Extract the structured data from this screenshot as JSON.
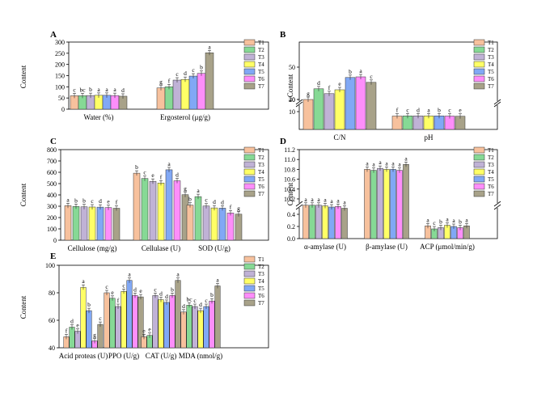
{
  "legend": [
    "T1",
    "T2",
    "T3",
    "T4",
    "T5",
    "T6",
    "T7"
  ],
  "colors": [
    "#f7c19d",
    "#86d995",
    "#c0b2d6",
    "#ffff66",
    "#81a8f5",
    "#fd8efa",
    "#a8a289"
  ],
  "chart_data": [
    {
      "panel": "A",
      "type": "bar",
      "ylabel": "Content",
      "categories": [
        "Water (%)",
        "Ergosterol (μg/g)"
      ],
      "ylim": [
        0,
        300
      ],
      "yticks": [
        "0",
        "50",
        "100",
        "150",
        "200",
        "250",
        "300"
      ],
      "series": [
        {
          "name": "T1",
          "values": [
            60,
            95
          ],
          "letters": [
            "c",
            "g"
          ]
        },
        {
          "name": "T2",
          "values": [
            60,
            100
          ],
          "letters": [
            "bc",
            "f"
          ]
        },
        {
          "name": "T3",
          "values": [
            61,
            130
          ],
          "letters": [
            "b",
            "c"
          ]
        },
        {
          "name": "T4",
          "values": [
            62,
            133
          ],
          "letters": [
            "a",
            "d"
          ]
        },
        {
          "name": "T5",
          "values": [
            62,
            148
          ],
          "letters": [
            "a",
            "c"
          ]
        },
        {
          "name": "T6",
          "values": [
            61,
            160
          ],
          "letters": [
            "a",
            "b"
          ]
        },
        {
          "name": "T7",
          "values": [
            58,
            252
          ],
          "letters": [
            "d",
            "a"
          ]
        }
      ]
    },
    {
      "panel": "B",
      "type": "bar",
      "broken_axis": true,
      "ylabel": "Content",
      "categories": [
        "C/N",
        "pH"
      ],
      "ylim": [
        0,
        55
      ],
      "yticks": [
        "10",
        "20",
        "40",
        "50"
      ],
      "series": [
        {
          "name": "T1",
          "values": [
            37.5,
            7.5
          ],
          "letters": [
            "g",
            "f"
          ]
        },
        {
          "name": "T2",
          "values": [
            43.3,
            7.6
          ],
          "letters": [
            "d",
            "c"
          ]
        },
        {
          "name": "T3",
          "values": [
            41.8,
            7.6
          ],
          "letters": [
            "f",
            "d"
          ]
        },
        {
          "name": "T4",
          "values": [
            43.0,
            7.6
          ],
          "letters": [
            "e",
            "a"
          ]
        },
        {
          "name": "T5",
          "values": [
            46.8,
            7.6
          ],
          "letters": [
            "b",
            "b"
          ]
        },
        {
          "name": "T6",
          "values": [
            47.0,
            7.5
          ],
          "letters": [
            "a",
            "c"
          ]
        },
        {
          "name": "T7",
          "values": [
            45.3,
            7.4
          ],
          "letters": [
            "c",
            "e"
          ]
        }
      ]
    },
    {
      "panel": "C",
      "type": "bar",
      "ylabel": "Content",
      "categories": [
        "Cellulose (mg/g)",
        "Cellulase (U)",
        "SOD (U/g)"
      ],
      "ylim": [
        0,
        800
      ],
      "yticks": [
        "0",
        "100",
        "200",
        "300",
        "400",
        "500",
        "600",
        "700",
        "800"
      ],
      "series": [
        {
          "name": "T1",
          "values": [
            305,
            592,
            310
          ],
          "letters": [
            "a",
            "b",
            "b"
          ]
        },
        {
          "name": "T2",
          "values": [
            298,
            545,
            385
          ],
          "letters": [
            "b",
            "c",
            "a"
          ]
        },
        {
          "name": "T3",
          "values": [
            295,
            520,
            302
          ],
          "letters": [
            "b",
            "e",
            "c"
          ]
        },
        {
          "name": "T4",
          "values": [
            293,
            505,
            285
          ],
          "letters": [
            "c",
            "f",
            "d"
          ]
        },
        {
          "name": "T5",
          "values": [
            292,
            622,
            283
          ],
          "letters": [
            "d",
            "a",
            "d"
          ]
        },
        {
          "name": "T6",
          "values": [
            288,
            525,
            240
          ],
          "letters": [
            "e",
            "d",
            "f"
          ]
        },
        {
          "name": "T7",
          "values": [
            282,
            402,
            230
          ],
          "letters": [
            "f",
            "g",
            "g"
          ]
        }
      ]
    },
    {
      "panel": "D",
      "type": "bar",
      "broken_axis": true,
      "ylabel": "Content",
      "categories": [
        "α-amylase (U)",
        "β-amylase (U)",
        "ACP (μmol/min/g)"
      ],
      "ylim": [
        0,
        11.2
      ],
      "yticks": [
        "0.0",
        "0.2",
        "0.4",
        "10.2",
        "10.4",
        "10.6",
        "10.8",
        "11.0",
        "11.2"
      ],
      "series": [
        {
          "name": "T1",
          "values": [
            0.55,
            10.8,
            0.21
          ],
          "letters": [
            "a",
            "a",
            "a"
          ]
        },
        {
          "name": "T2",
          "values": [
            0.55,
            10.78,
            0.16
          ],
          "letters": [
            "a",
            "a",
            "c"
          ]
        },
        {
          "name": "T3",
          "values": [
            0.55,
            10.82,
            0.18
          ],
          "letters": [
            "a",
            "a",
            "b"
          ]
        },
        {
          "name": "T4",
          "values": [
            0.54,
            10.8,
            0.22
          ],
          "letters": [
            "a",
            "a",
            "a"
          ]
        },
        {
          "name": "T5",
          "values": [
            0.52,
            10.8,
            0.2
          ],
          "letters": [
            "a",
            "a",
            "a"
          ]
        },
        {
          "name": "T6",
          "values": [
            0.53,
            10.78,
            0.18
          ],
          "letters": [
            "a",
            "a",
            "b"
          ]
        },
        {
          "name": "T7",
          "values": [
            0.5,
            10.9,
            0.21
          ],
          "letters": [
            "a",
            "a",
            "a"
          ]
        }
      ]
    },
    {
      "panel": "E",
      "type": "bar",
      "ylabel": "Content",
      "categories": [
        "Acid proteas (U)",
        "PPO (U/g)",
        "CAT (U/g)",
        "MDA (nmol/g)"
      ],
      "ylim": [
        40,
        100
      ],
      "yticks": [
        "40",
        "60",
        "80",
        "100"
      ],
      "series": [
        {
          "name": "T1",
          "values": [
            48,
            80,
            48,
            66
          ],
          "letters": [
            "f",
            "c",
            "e",
            "d"
          ]
        },
        {
          "name": "T2",
          "values": [
            55,
            76,
            49,
            71
          ],
          "letters": [
            "d",
            "e",
            "e",
            "bc"
          ]
        },
        {
          "name": "T3",
          "values": [
            52,
            70,
            78,
            70
          ],
          "letters": [
            "e",
            "f",
            "c",
            "c"
          ]
        },
        {
          "name": "T4",
          "values": [
            84,
            81,
            75,
            67
          ],
          "letters": [
            "a",
            "c",
            "d",
            "d"
          ]
        },
        {
          "name": "T5",
          "values": [
            67,
            89,
            73,
            70
          ],
          "letters": [
            "b",
            "a",
            "d",
            "c"
          ]
        },
        {
          "name": "T6",
          "values": [
            45,
            78,
            78,
            74
          ],
          "letters": [
            "g",
            "d",
            "b",
            "b"
          ]
        },
        {
          "name": "T7",
          "values": [
            57,
            77,
            89,
            85
          ],
          "letters": [
            "c",
            "e",
            "a",
            "a"
          ]
        }
      ]
    }
  ]
}
